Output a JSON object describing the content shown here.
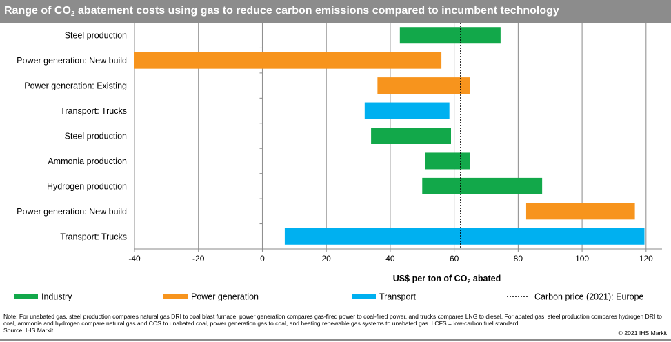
{
  "title": {
    "prefix": "Range of CO",
    "sub": "2",
    "suffix": " abatement costs using gas to reduce carbon emissions compared to incumbent technology"
  },
  "chart_data": {
    "type": "bar",
    "orientation": "horizontal-range",
    "categories": [
      "Steel production",
      "Power generation: New build",
      "Power generation: Existing",
      "Transport: Trucks",
      "Steel production",
      "Ammonia production",
      "Hydrogen production",
      "Power generation: New build",
      "Transport: Trucks"
    ],
    "ranges": [
      {
        "group": "Industry",
        "start": 43,
        "end": 74.5
      },
      {
        "group": "Power generation",
        "start": -40,
        "end": 56
      },
      {
        "group": "Power generation",
        "start": 36,
        "end": 65
      },
      {
        "group": "Transport",
        "start": 32,
        "end": 58.5
      },
      {
        "group": "Industry",
        "start": 34,
        "end": 59
      },
      {
        "group": "Industry",
        "start": 51,
        "end": 65
      },
      {
        "group": "Industry",
        "start": 50,
        "end": 87.5
      },
      {
        "group": "Power generation",
        "start": 82.5,
        "end": 116.5
      },
      {
        "group": "Transport",
        "start": 7,
        "end": 119.5
      }
    ],
    "reference_line": {
      "name": "Carbon price (2021): Europe",
      "value": 62
    },
    "xlim": [
      -40,
      125
    ],
    "xticks": [
      -40,
      -20,
      0,
      20,
      40,
      60,
      80,
      100,
      120
    ],
    "xlabel": {
      "prefix": "US$ per ton of CO",
      "sub": "2",
      "suffix": " abated"
    },
    "grid": "vertical",
    "legend": {
      "placement": "bottom",
      "items": [
        {
          "name": "Industry",
          "color": "#12a84a"
        },
        {
          "name": "Power generation",
          "color": "#f7941d"
        },
        {
          "name": "Transport",
          "color": "#00b0f0"
        },
        {
          "name": "Carbon price (2021): Europe",
          "style": "dotted"
        }
      ]
    },
    "colors": {
      "Industry": "#12a84a",
      "Power generation": "#f7941d",
      "Transport": "#00b0f0"
    }
  },
  "footnote": {
    "note": "Note: For unabated gas, steel production compares natural gas DRI to coal blast furnace, power generation compares gas-fired power to coal-fired power,  and trucks compares LNG to diesel. For abated gas, steel production compares hydrogen DRI to coal, ammonia and hydrogen compare natural gas and CCS to unabated coal, power generation gas to coal, and heating renewable  gas systems to unabated gas. LCFS = low-carbon  fuel standard.",
    "source": "Source: IHS Markit."
  },
  "copyright": "© 2021  IHS Markit"
}
